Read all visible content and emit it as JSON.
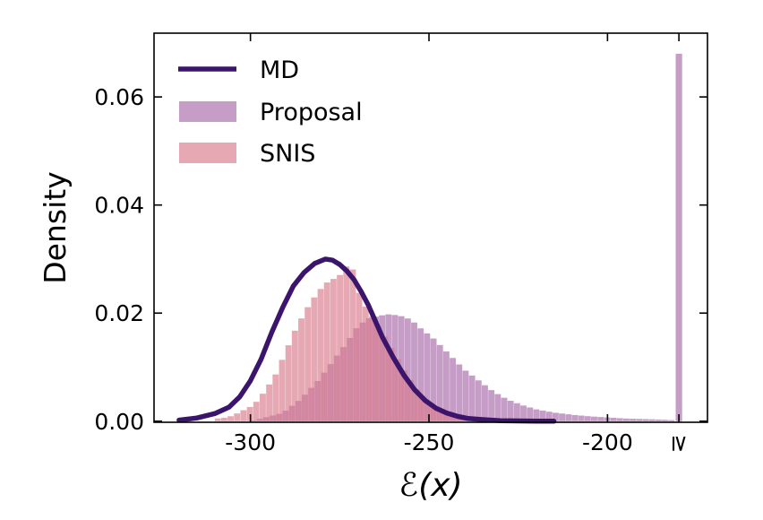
{
  "chart_data": {
    "type": "histogram+line",
    "xlabel": "ℰ(x)",
    "ylabel": "Density",
    "xlim": [
      -327,
      -172
    ],
    "ylim": [
      -0.0002,
      0.0718
    ],
    "xticks": [
      -300,
      -250,
      -200,
      -180
    ],
    "xtick_labels": [
      "-300",
      "-250",
      "-200",
      "≥"
    ],
    "yticks": [
      0.0,
      0.02,
      0.04,
      0.06
    ],
    "ytick_labels": [
      "0.00",
      "0.02",
      "0.04",
      "0.06"
    ],
    "grid": false,
    "legend_placement": "top-left",
    "legend": [
      {
        "label": "MD",
        "kind": "line",
        "color": "#3b146b"
      },
      {
        "label": "Proposal",
        "kind": "patch",
        "color": "#a868a8"
      },
      {
        "label": "SNIS",
        "kind": "patch",
        "color": "#d9798a"
      }
    ],
    "bin_width": 1.8,
    "proposal": {
      "name": "Proposal",
      "color": "#a868a8",
      "opacity": 0.65,
      "x": [
        -300,
        -291,
        -286,
        -281,
        -277,
        -273,
        -270,
        -267,
        -264,
        -261,
        -258,
        -255,
        -252,
        -249,
        -246,
        -243,
        -240,
        -236,
        -232,
        -228,
        -224,
        -220,
        -215,
        -210,
        -205,
        -200,
        -195,
        -190,
        -185,
        -182
      ],
      "density": [
        0.0,
        0.0015,
        0.004,
        0.0075,
        0.011,
        0.0145,
        0.0175,
        0.019,
        0.0195,
        0.0198,
        0.0195,
        0.0188,
        0.017,
        0.0155,
        0.0135,
        0.0115,
        0.0095,
        0.0075,
        0.0055,
        0.004,
        0.003,
        0.0022,
        0.0016,
        0.0012,
        0.0009,
        0.0007,
        0.0005,
        0.0004,
        0.0003,
        0.0002
      ],
      "overflow_bin_density": 0.068
    },
    "snis": {
      "name": "SNIS",
      "color": "#d9798a",
      "opacity": 0.65,
      "x": [
        -308,
        -305,
        -302,
        -299,
        -296,
        -293,
        -290,
        -287,
        -284,
        -281,
        -278,
        -276,
        -274,
        -272,
        -270,
        -268,
        -266,
        -263,
        -260,
        -257,
        -254,
        -251,
        -248,
        -245,
        -242,
        -238,
        -234,
        -230,
        -225,
        -220
      ],
      "density": [
        0.0005,
        0.001,
        0.002,
        0.003,
        0.0055,
        0.0085,
        0.013,
        0.0175,
        0.021,
        0.024,
        0.026,
        0.0265,
        0.0275,
        0.03,
        0.0245,
        0.0215,
        0.0195,
        0.0165,
        0.013,
        0.0095,
        0.0065,
        0.004,
        0.0025,
        0.0016,
        0.001,
        0.0006,
        0.0004,
        0.0002,
        0.0001,
        5e-05
      ]
    },
    "md": {
      "name": "MD",
      "color": "#3b146b",
      "x": [
        -320,
        -315,
        -310,
        -306,
        -303,
        -300,
        -297,
        -294,
        -291,
        -288,
        -285,
        -282,
        -279,
        -277,
        -275,
        -273,
        -271,
        -269,
        -267,
        -265,
        -263,
        -260,
        -257,
        -254,
        -251,
        -248,
        -245,
        -242,
        -239,
        -235,
        -230,
        -225,
        -220,
        -215
      ],
      "density": [
        0.0002,
        0.0006,
        0.0014,
        0.0026,
        0.0045,
        0.0075,
        0.0115,
        0.0165,
        0.021,
        0.025,
        0.0275,
        0.0292,
        0.03,
        0.0298,
        0.029,
        0.0278,
        0.0262,
        0.024,
        0.0215,
        0.0185,
        0.0155,
        0.0118,
        0.0085,
        0.0058,
        0.0038,
        0.0024,
        0.0015,
        0.0009,
        0.0005,
        0.0003,
        0.0001,
        5e-05,
        0.0,
        0.0
      ]
    }
  }
}
